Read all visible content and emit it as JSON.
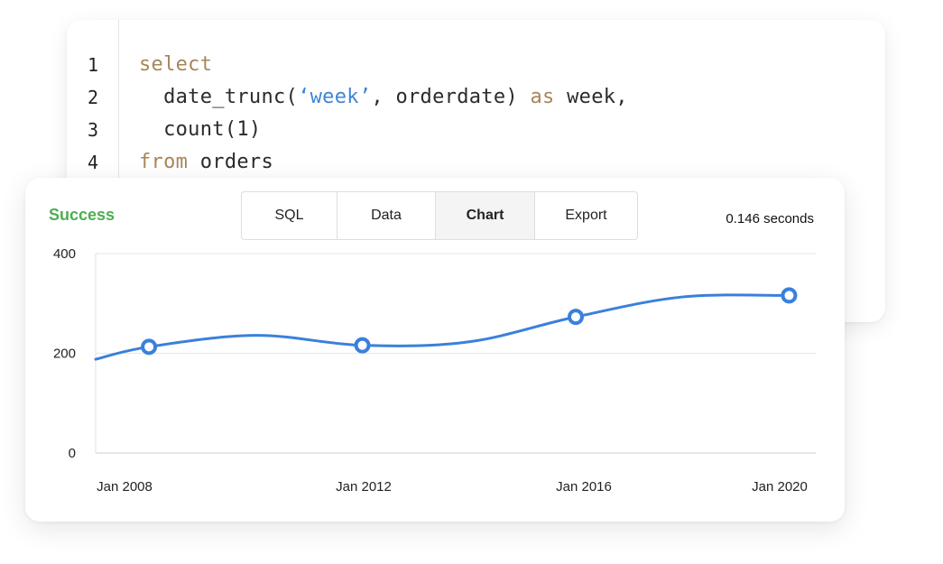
{
  "editor": {
    "line_numbers": [
      "1",
      "2",
      "3",
      "4"
    ],
    "lines": [
      [
        {
          "t": "select",
          "c": "kw"
        }
      ],
      [
        {
          "t": "  date_trunc(",
          "c": ""
        },
        {
          "t": "‘week’",
          "c": "str"
        },
        {
          "t": ", orderdate) ",
          "c": ""
        },
        {
          "t": "as",
          "c": "kw"
        },
        {
          "t": " week,",
          "c": ""
        }
      ],
      [
        {
          "t": "  count(1)",
          "c": ""
        }
      ],
      [
        {
          "t": "from",
          "c": "kw"
        },
        {
          "t": " orders",
          "c": ""
        }
      ]
    ]
  },
  "result": {
    "status": "Success",
    "tabs": [
      {
        "label": "SQL",
        "active": false
      },
      {
        "label": "Data",
        "active": false
      },
      {
        "label": "Chart",
        "active": true
      },
      {
        "label": "Export",
        "active": false
      }
    ],
    "timing": "0.146 seconds"
  },
  "chart_data": {
    "type": "line",
    "title": "",
    "xlabel": "",
    "ylabel": "",
    "x_ticks": [
      "Jan 2008",
      "Jan 2012",
      "Jan 2016",
      "Jan 2020"
    ],
    "y_ticks": [
      "0",
      "200",
      "400"
    ],
    "ylim": [
      0,
      400
    ],
    "xlim": [
      2007.0,
      2020.5
    ],
    "grid": true,
    "color": "#3a80db",
    "series": [
      {
        "points": [
          {
            "x": 2007.0,
            "y": 188
          },
          {
            "x": 2008.0,
            "y": 213,
            "marker": true
          },
          {
            "x": 2010.0,
            "y": 236
          },
          {
            "x": 2012.0,
            "y": 216,
            "marker": true
          },
          {
            "x": 2014.0,
            "y": 223
          },
          {
            "x": 2016.0,
            "y": 273,
            "marker": true
          },
          {
            "x": 2018.0,
            "y": 313
          },
          {
            "x": 2020.0,
            "y": 316,
            "marker": true
          }
        ]
      }
    ]
  }
}
